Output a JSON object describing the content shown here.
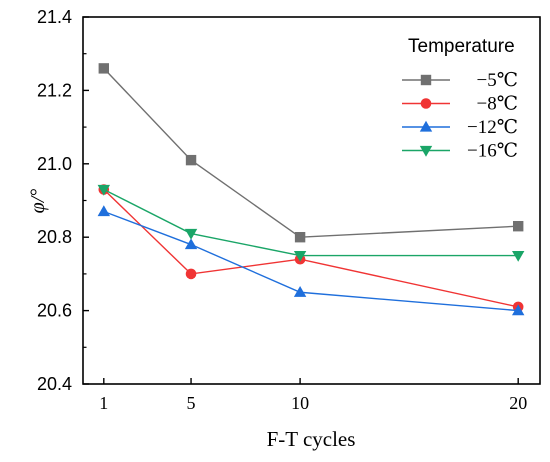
{
  "chart_data": {
    "type": "line",
    "title": "",
    "xlabel": "F-T cycles",
    "ylabel": "φ/°",
    "categories": [
      "1",
      "5",
      "10",
      "20"
    ],
    "x_positions": [
      1,
      5,
      10,
      20
    ],
    "ylim": [
      20.4,
      21.4
    ],
    "yticks": [
      "20.4",
      "20.6",
      "20.8",
      "21.0",
      "21.2",
      "21.4"
    ],
    "grid": false,
    "legend_title": "Temperature",
    "legend_position": "top-right",
    "series": [
      {
        "name": "−5℃",
        "values": [
          21.26,
          21.01,
          20.8,
          20.83
        ],
        "color": "#707070",
        "marker": "square"
      },
      {
        "name": "−8℃",
        "values": [
          20.93,
          20.7,
          20.74,
          20.61
        ],
        "color": "#f03434",
        "marker": "circle"
      },
      {
        "name": "−12℃",
        "values": [
          20.87,
          20.78,
          20.65,
          20.6
        ],
        "color": "#1f6fdc",
        "marker": "triangle-up"
      },
      {
        "name": "−16℃",
        "values": [
          20.93,
          20.81,
          20.75,
          20.75
        ],
        "color": "#1aa567",
        "marker": "triangle-down"
      }
    ]
  }
}
